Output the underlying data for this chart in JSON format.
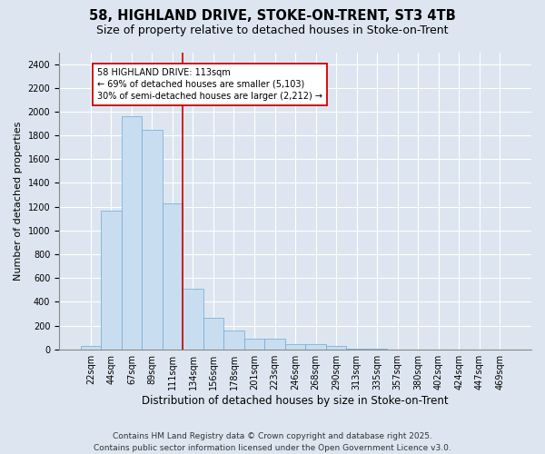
{
  "title1": "58, HIGHLAND DRIVE, STOKE-ON-TRENT, ST3 4TB",
  "title2": "Size of property relative to detached houses in Stoke-on-Trent",
  "xlabel": "Distribution of detached houses by size in Stoke-on-Trent",
  "ylabel": "Number of detached properties",
  "categories": [
    "22sqm",
    "44sqm",
    "67sqm",
    "89sqm",
    "111sqm",
    "134sqm",
    "156sqm",
    "178sqm",
    "201sqm",
    "223sqm",
    "246sqm",
    "268sqm",
    "290sqm",
    "313sqm",
    "335sqm",
    "357sqm",
    "380sqm",
    "402sqm",
    "424sqm",
    "447sqm",
    "469sqm"
  ],
  "values": [
    30,
    1165,
    1960,
    1850,
    1230,
    510,
    265,
    155,
    90,
    90,
    40,
    40,
    30,
    5,
    5,
    0,
    0,
    0,
    0,
    0,
    0
  ],
  "bar_color": "#c9ddf0",
  "bar_edge_color": "#6aaad4",
  "bg_color": "#dde6f0",
  "grid_color": "#ffffff",
  "vline_color": "#cc0000",
  "vline_x_index": 4,
  "annotation_text": "58 HIGHLAND DRIVE: 113sqm\n← 69% of detached houses are smaller (5,103)\n30% of semi-detached houses are larger (2,212) →",
  "annotation_box_color": "#cc0000",
  "ylim": [
    0,
    2500
  ],
  "yticks": [
    0,
    200,
    400,
    600,
    800,
    1000,
    1200,
    1400,
    1600,
    1800,
    2000,
    2200,
    2400
  ],
  "footer": "Contains HM Land Registry data © Crown copyright and database right 2025.\nContains public sector information licensed under the Open Government Licence v3.0.",
  "title_fontsize": 10.5,
  "subtitle_fontsize": 9,
  "ylabel_fontsize": 8,
  "xlabel_fontsize": 8.5,
  "tick_fontsize": 7,
  "annotation_fontsize": 7,
  "footer_fontsize": 6.5
}
